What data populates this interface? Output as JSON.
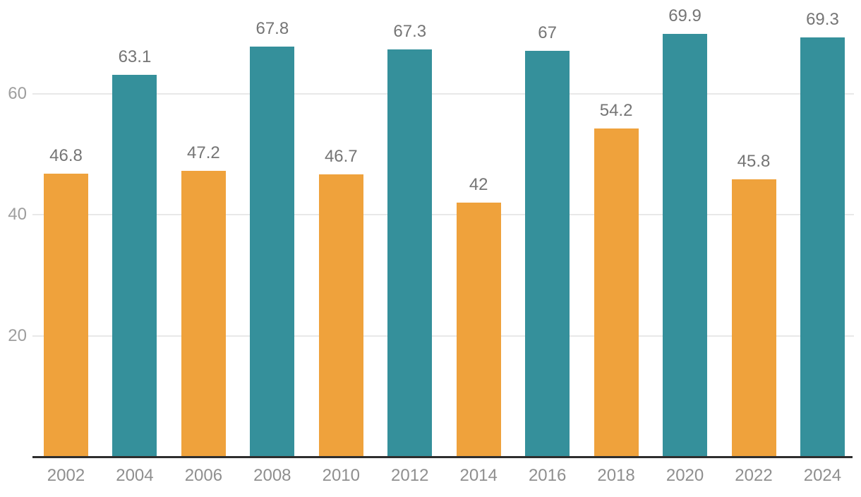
{
  "chart_data": {
    "type": "bar",
    "title": "",
    "xlabel": "",
    "ylabel": "",
    "categories": [
      "2002",
      "2004",
      "2006",
      "2008",
      "2010",
      "2012",
      "2014",
      "2016",
      "2018",
      "2020",
      "2022",
      "2024"
    ],
    "values": [
      46.8,
      63.1,
      47.2,
      67.8,
      46.7,
      67.3,
      42,
      67,
      54.2,
      69.9,
      45.8,
      69.3
    ],
    "value_labels": [
      "46.8",
      "63.1",
      "47.2",
      "67.8",
      "46.7",
      "67.3",
      "42",
      "67",
      "54.2",
      "69.9",
      "45.8",
      "69.3"
    ],
    "bar_color_keys": [
      "orange",
      "teal",
      "orange",
      "teal",
      "orange",
      "teal",
      "orange",
      "teal",
      "orange",
      "teal",
      "orange",
      "teal"
    ],
    "palette": {
      "orange": "#efa23c",
      "teal": "#35909b"
    },
    "ytick_labels": [
      "20",
      "40",
      "60"
    ],
    "ytick_values": [
      20,
      40,
      60
    ],
    "ylim": [
      0,
      75.5
    ],
    "grid": true,
    "legend_position": "none"
  },
  "colors": {
    "background": "#ffffff",
    "gridline": "#e8e8e8",
    "axis_line": "#2e2e2e",
    "ytick_label": "#9e9e9e",
    "xtick_label": "#8f8f8f",
    "value_label": "#757575"
  }
}
